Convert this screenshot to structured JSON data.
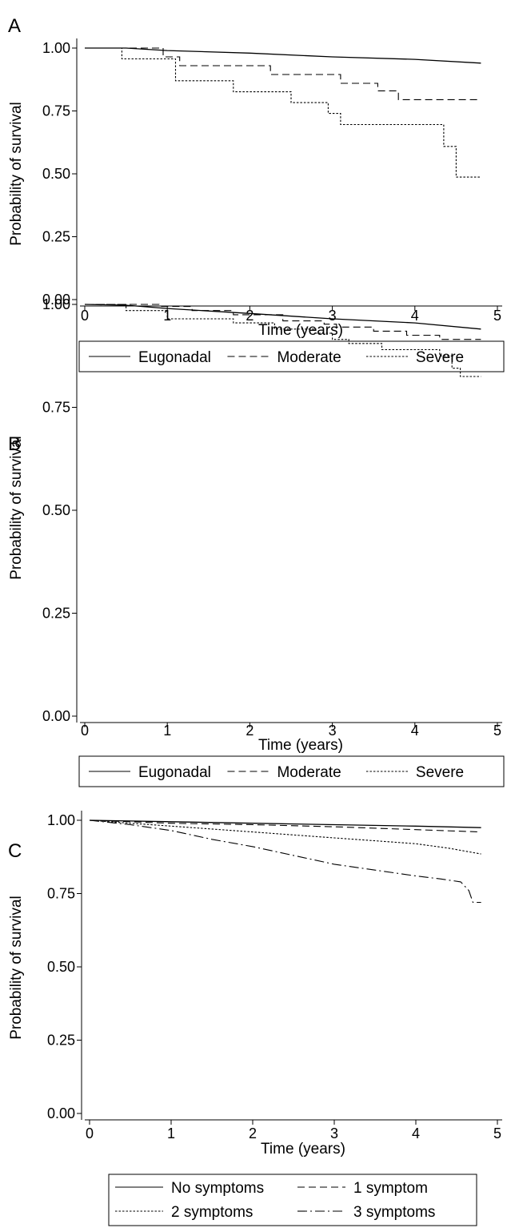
{
  "chart_data": [
    {
      "panel_label": "A",
      "type": "line",
      "xlabel": "Time (years)",
      "ylabel": "Probability of survival",
      "xlim": [
        0,
        5
      ],
      "ylim": [
        0,
        1
      ],
      "xticks": [
        "0",
        "1",
        "2",
        "3",
        "4",
        "5"
      ],
      "yticks": [
        "0.00",
        "0.25",
        "0.50",
        "0.75",
        "1.00"
      ],
      "legend": "bottom",
      "series": [
        {
          "name": "Eugonadal",
          "style": "solid",
          "step": false,
          "points": [
            [
              0,
              1.0
            ],
            [
              0.5,
              1.0
            ],
            [
              1,
              0.99
            ],
            [
              2,
              0.98
            ],
            [
              3,
              0.965
            ],
            [
              4,
              0.955
            ],
            [
              4.8,
              0.94
            ]
          ]
        },
        {
          "name": "Moderate",
          "style": "dashed",
          "step": true,
          "points": [
            [
              0,
              1.0
            ],
            [
              0.95,
              0.965
            ],
            [
              1.15,
              0.93
            ],
            [
              2.25,
              0.895
            ],
            [
              3.1,
              0.86
            ],
            [
              3.55,
              0.83
            ],
            [
              3.8,
              0.795
            ],
            [
              4.8,
              0.795
            ]
          ]
        },
        {
          "name": "Severe",
          "style": "dotted",
          "step": true,
          "points": [
            [
              0,
              1.0
            ],
            [
              0.45,
              0.957
            ],
            [
              1.1,
              0.87
            ],
            [
              1.8,
              0.826
            ],
            [
              2.5,
              0.783
            ],
            [
              2.95,
              0.74
            ],
            [
              3.1,
              0.696
            ],
            [
              4.35,
              0.609
            ],
            [
              4.5,
              0.487
            ],
            [
              4.8,
              0.487
            ]
          ]
        }
      ]
    },
    {
      "panel_label": "B",
      "type": "line",
      "xlabel": "Time (years)",
      "ylabel": "Probability of survival",
      "xlim": [
        0,
        5
      ],
      "ylim": [
        0,
        1
      ],
      "xticks": [
        "0",
        "1",
        "2",
        "3",
        "4",
        "5"
      ],
      "yticks": [
        "0.00",
        "0.25",
        "0.50",
        "0.75",
        "1.00"
      ],
      "legend": "bottom",
      "series": [
        {
          "name": "Eugonadal",
          "style": "solid",
          "step": false,
          "points": [
            [
              0,
              1.0
            ],
            [
              0.5,
              0.998
            ],
            [
              1,
              0.99
            ],
            [
              2,
              0.978
            ],
            [
              3,
              0.965
            ],
            [
              4,
              0.955
            ],
            [
              4.8,
              0.94
            ]
          ]
        },
        {
          "name": "Moderate",
          "style": "dashed",
          "step": true,
          "points": [
            [
              0,
              1.0
            ],
            [
              0.9,
              0.995
            ],
            [
              1.3,
              0.985
            ],
            [
              1.8,
              0.975
            ],
            [
              2.4,
              0.96
            ],
            [
              2.9,
              0.952
            ],
            [
              3.05,
              0.945
            ],
            [
              3.5,
              0.935
            ],
            [
              3.9,
              0.925
            ],
            [
              4.3,
              0.915
            ],
            [
              4.8,
              0.915
            ]
          ]
        },
        {
          "name": "Severe",
          "style": "dotted",
          "step": true,
          "points": [
            [
              0,
              1.0
            ],
            [
              0.5,
              0.985
            ],
            [
              1.0,
              0.965
            ],
            [
              1.8,
              0.955
            ],
            [
              2.3,
              0.94
            ],
            [
              2.8,
              0.93
            ],
            [
              3.0,
              0.915
            ],
            [
              3.2,
              0.905
            ],
            [
              3.6,
              0.89
            ],
            [
              4.3,
              0.875
            ],
            [
              4.45,
              0.845
            ],
            [
              4.55,
              0.825
            ],
            [
              4.8,
              0.825
            ]
          ]
        }
      ]
    },
    {
      "panel_label": "C",
      "type": "line",
      "xlabel": "Time (years)",
      "ylabel": "Probability of survival",
      "xlim": [
        0,
        5
      ],
      "ylim": [
        0,
        1
      ],
      "xticks": [
        "0",
        "1",
        "2",
        "3",
        "4",
        "5"
      ],
      "yticks": [
        "0.00",
        "0.25",
        "0.50",
        "0.75",
        "1.00"
      ],
      "legend": "bottom",
      "series": [
        {
          "name": "No symptoms",
          "style": "solid",
          "step": false,
          "points": [
            [
              0,
              1.0
            ],
            [
              1,
              0.995
            ],
            [
              2,
              0.99
            ],
            [
              3,
              0.985
            ],
            [
              4,
              0.98
            ],
            [
              4.8,
              0.975
            ]
          ]
        },
        {
          "name": "1 symptom",
          "style": "dashed",
          "step": false,
          "points": [
            [
              0,
              1.0
            ],
            [
              1,
              0.99
            ],
            [
              2,
              0.985
            ],
            [
              3,
              0.978
            ],
            [
              4,
              0.968
            ],
            [
              4.8,
              0.96
            ]
          ]
        },
        {
          "name": "2 symptoms",
          "style": "dotted",
          "step": false,
          "points": [
            [
              0,
              1.0
            ],
            [
              0.5,
              0.99
            ],
            [
              1,
              0.98
            ],
            [
              2,
              0.96
            ],
            [
              3,
              0.94
            ],
            [
              3.5,
              0.93
            ],
            [
              4,
              0.92
            ],
            [
              4.4,
              0.905
            ],
            [
              4.8,
              0.885
            ]
          ]
        },
        {
          "name": "3 symptoms",
          "style": "dashdot",
          "step": false,
          "points": [
            [
              0,
              1.0
            ],
            [
              0.5,
              0.985
            ],
            [
              1,
              0.965
            ],
            [
              1.5,
              0.935
            ],
            [
              2,
              0.91
            ],
            [
              2.5,
              0.88
            ],
            [
              3,
              0.85
            ],
            [
              3.5,
              0.83
            ],
            [
              4,
              0.81
            ],
            [
              4.3,
              0.8
            ],
            [
              4.55,
              0.79
            ],
            [
              4.65,
              0.76
            ],
            [
              4.7,
              0.72
            ],
            [
              4.8,
              0.72
            ]
          ]
        }
      ]
    }
  ]
}
